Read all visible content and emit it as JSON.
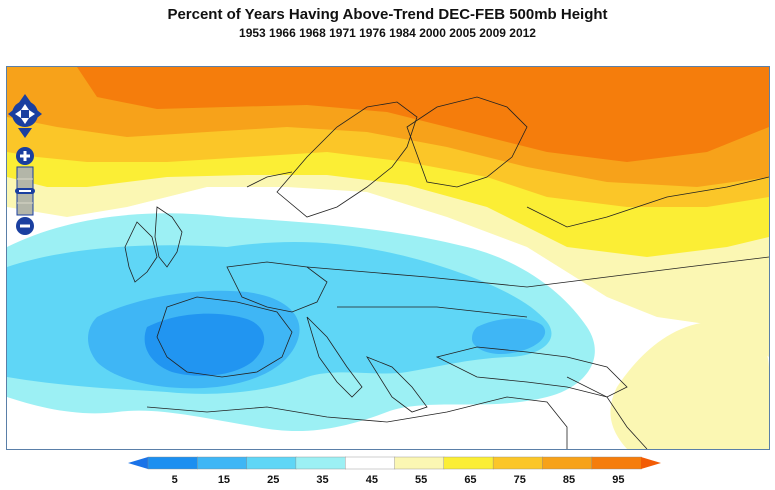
{
  "title": "Percent of Years Having Above-Trend DEC-FEB 500mb Height",
  "subtitle": "1953 1966 1968 1971 1976 1984 2000 2005 2009 2012",
  "map": {
    "region": "Europe",
    "variable": "Percent of years above-trend 500mb height"
  },
  "map_controls": {
    "pan_icon": "pan-arrows-icon",
    "zoom_in_icon": "zoom-in-icon",
    "zoom_out_icon": "zoom-out-icon"
  },
  "legend": {
    "ticks": [
      "5",
      "15",
      "25",
      "35",
      "45",
      "55",
      "65",
      "75",
      "85",
      "95"
    ],
    "colors": [
      "#1c8ff0",
      "#3fb6f5",
      "#5fd6f6",
      "#9cf0f4",
      "#ffffff",
      "#fbf7b3",
      "#fbee35",
      "#fbc628",
      "#f7a21a",
      "#f57d0c"
    ],
    "low_arrow_color": "#1a73e8",
    "high_arrow_color": "#f25c05"
  }
}
